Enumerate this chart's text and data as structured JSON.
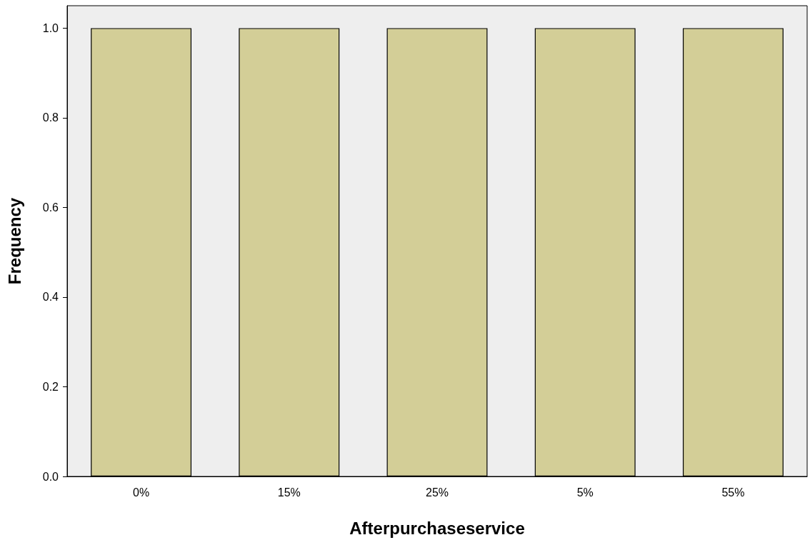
{
  "chart_data": {
    "type": "bar",
    "xlabel": "Afterpurchaseservice",
    "ylabel": "Frequency",
    "categories": [
      "0%",
      "15%",
      "25%",
      "5%",
      "55%"
    ],
    "values": [
      1,
      1,
      1,
      1,
      1
    ],
    "color": "#d3ce97",
    "ylim": [
      0,
      1.05
    ],
    "yticks": [
      {
        "value": 0,
        "label": "0.0"
      },
      {
        "value": 0.2,
        "label": "0.2"
      },
      {
        "value": 0.4,
        "label": "0.4"
      },
      {
        "value": 0.6,
        "label": "0.6"
      },
      {
        "value": 0.8,
        "label": "0.8"
      },
      {
        "value": 1,
        "label": "1.0"
      }
    ],
    "grid": false
  }
}
